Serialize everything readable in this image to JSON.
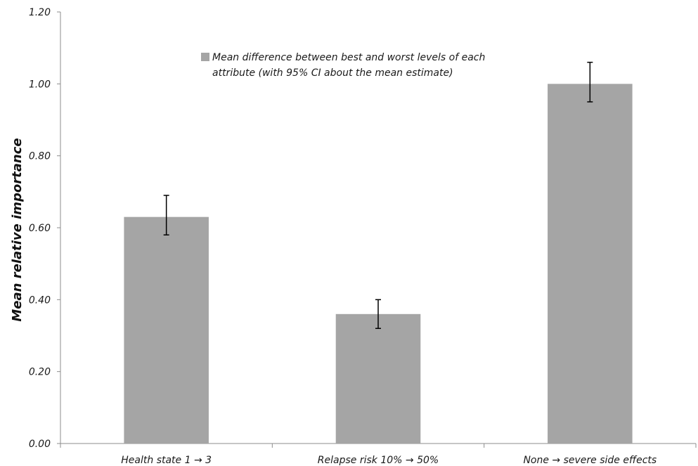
{
  "chart_data": {
    "type": "bar",
    "categories": [
      "Health state 1 → 3",
      "Relapse risk 10% → 50%",
      "None → severe side effects"
    ],
    "series": [
      {
        "name": "Mean difference between best and worst levels of each attribute (with 95% CI about the mean estimate)",
        "values": [
          0.63,
          0.36,
          1.0
        ],
        "ci_low": [
          0.58,
          0.32,
          0.95
        ],
        "ci_high": [
          0.69,
          0.4,
          1.06
        ],
        "color": "#a5a5a5"
      }
    ],
    "legend_lines": [
      "Mean difference between best and worst levels of each",
      "attribute (with 95% CI about the mean estimate)"
    ],
    "ylabel": "Mean relative importance",
    "ylim": [
      0,
      1.2
    ],
    "yticks": [
      "0.00",
      "0.20",
      "0.40",
      "0.60",
      "0.80",
      "1.00",
      "1.20"
    ],
    "legend_position": "top-center",
    "grid": false
  }
}
